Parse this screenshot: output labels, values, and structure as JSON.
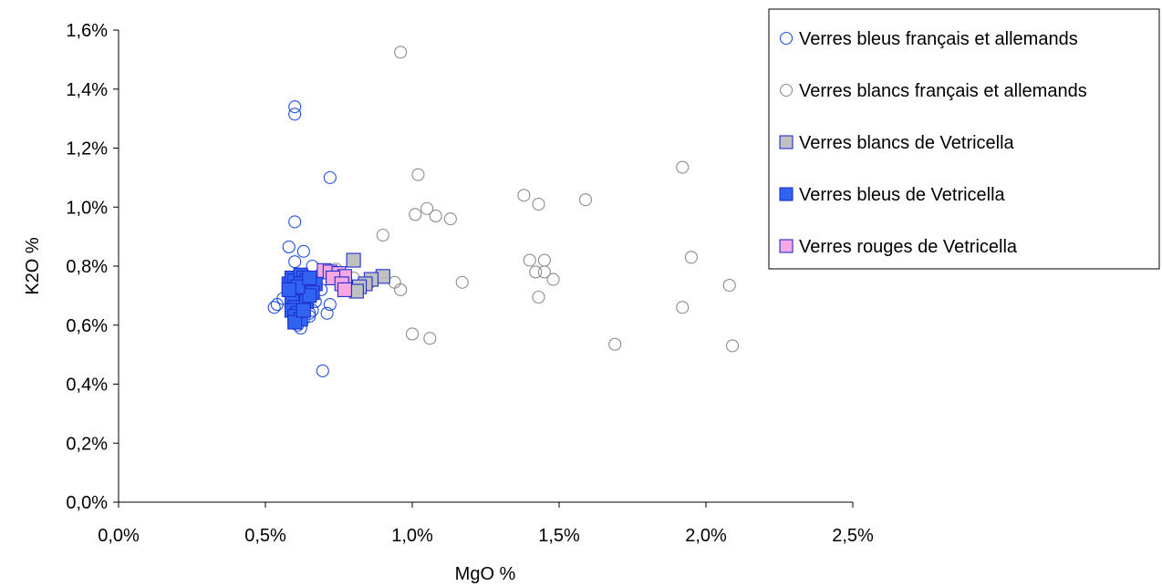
{
  "chart_data": {
    "type": "scatter",
    "xlabel": "MgO %",
    "ylabel": "K2O %",
    "xlim": [
      0,
      2.5
    ],
    "ylim": [
      0,
      1.6
    ],
    "x_ticks": [
      "0,0%",
      "0,5%",
      "1,0%",
      "1,5%",
      "2,0%",
      "2,5%"
    ],
    "y_ticks": [
      "0,0%",
      "0,2%",
      "0,4%",
      "0,6%",
      "0,8%",
      "1,0%",
      "1,2%",
      "1,4%",
      "1,6%"
    ],
    "grid": false,
    "legend_position": "top-right",
    "series": [
      {
        "name": "Verres bleus français et allemands",
        "marker": "circle",
        "stroke": "#1f4fe0",
        "fill": "none",
        "points": [
          [
            0.6,
            1.34
          ],
          [
            0.6,
            1.315
          ],
          [
            0.72,
            1.1
          ],
          [
            0.6,
            0.95
          ],
          [
            0.58,
            0.865
          ],
          [
            0.63,
            0.85
          ],
          [
            0.6,
            0.815
          ],
          [
            0.66,
            0.8
          ],
          [
            0.54,
            0.67
          ],
          [
            0.53,
            0.66
          ],
          [
            0.56,
            0.69
          ],
          [
            0.58,
            0.75
          ],
          [
            0.59,
            0.72
          ],
          [
            0.6,
            0.7
          ],
          [
            0.61,
            0.68
          ],
          [
            0.62,
            0.66
          ],
          [
            0.64,
            0.7
          ],
          [
            0.65,
            0.64
          ],
          [
            0.66,
            0.65
          ],
          [
            0.67,
            0.68
          ],
          [
            0.69,
            0.72
          ],
          [
            0.72,
            0.67
          ],
          [
            0.71,
            0.64
          ],
          [
            0.61,
            0.6
          ],
          [
            0.62,
            0.59
          ],
          [
            0.63,
            0.62
          ],
          [
            0.65,
            0.63
          ],
          [
            0.695,
            0.445
          ],
          [
            0.6,
            0.64
          ]
        ]
      },
      {
        "name": "Verres blancs français et allemands",
        "marker": "circle",
        "stroke": "#8c8c8c",
        "fill": "none",
        "points": [
          [
            0.96,
            1.525
          ],
          [
            1.02,
            1.11
          ],
          [
            1.05,
            0.995
          ],
          [
            1.01,
            0.975
          ],
          [
            1.08,
            0.97
          ],
          [
            1.13,
            0.96
          ],
          [
            0.9,
            0.905
          ],
          [
            1.38,
            1.04
          ],
          [
            1.43,
            1.01
          ],
          [
            1.59,
            1.025
          ],
          [
            1.92,
            1.135
          ],
          [
            1.95,
            0.83
          ],
          [
            1.4,
            0.82
          ],
          [
            1.45,
            0.82
          ],
          [
            1.42,
            0.78
          ],
          [
            1.45,
            0.78
          ],
          [
            1.48,
            0.755
          ],
          [
            1.43,
            0.695
          ],
          [
            1.17,
            0.745
          ],
          [
            0.94,
            0.745
          ],
          [
            0.96,
            0.72
          ],
          [
            1.0,
            0.57
          ],
          [
            1.06,
            0.555
          ],
          [
            1.69,
            0.535
          ],
          [
            1.92,
            0.66
          ],
          [
            2.08,
            0.735
          ],
          [
            2.09,
            0.53
          ],
          [
            0.74,
            0.79
          ],
          [
            0.8,
            0.76
          ],
          [
            0.82,
            0.73
          ],
          [
            0.85,
            0.74
          ]
        ]
      },
      {
        "name": "Verres blancs de Vetricella",
        "marker": "square",
        "stroke": "#1f2fd0",
        "fill": "#c0c0c0",
        "points": [
          [
            0.8,
            0.82
          ],
          [
            0.9,
            0.765
          ],
          [
            0.86,
            0.755
          ],
          [
            0.84,
            0.74
          ],
          [
            0.82,
            0.73
          ],
          [
            0.81,
            0.715
          ]
        ]
      },
      {
        "name": "Verres bleus de Vetricella",
        "marker": "square",
        "stroke": "#1f2fd0",
        "fill": "#2f63f0",
        "points": [
          [
            0.58,
            0.74
          ],
          [
            0.59,
            0.76
          ],
          [
            0.6,
            0.75
          ],
          [
            0.61,
            0.73
          ],
          [
            0.62,
            0.77
          ],
          [
            0.63,
            0.76
          ],
          [
            0.64,
            0.75
          ],
          [
            0.62,
            0.74
          ],
          [
            0.6,
            0.72
          ],
          [
            0.61,
            0.7
          ],
          [
            0.62,
            0.69
          ],
          [
            0.63,
            0.71
          ],
          [
            0.64,
            0.73
          ],
          [
            0.66,
            0.72
          ],
          [
            0.67,
            0.74
          ],
          [
            0.66,
            0.71
          ],
          [
            0.59,
            0.68
          ],
          [
            0.6,
            0.66
          ],
          [
            0.59,
            0.65
          ],
          [
            0.61,
            0.64
          ],
          [
            0.6,
            0.63
          ],
          [
            0.62,
            0.62
          ],
          [
            0.6,
            0.61
          ],
          [
            0.64,
            0.68
          ],
          [
            0.65,
            0.7
          ],
          [
            0.61,
            0.73
          ],
          [
            0.58,
            0.72
          ],
          [
            0.63,
            0.65
          ],
          [
            0.65,
            0.76
          ]
        ]
      },
      {
        "name": "Verres rouges de Vetricella",
        "marker": "square",
        "stroke": "#1f2fd0",
        "fill": "#f7a8e3",
        "points": [
          [
            0.7,
            0.785
          ],
          [
            0.72,
            0.78
          ],
          [
            0.75,
            0.775
          ],
          [
            0.77,
            0.765
          ],
          [
            0.73,
            0.76
          ],
          [
            0.76,
            0.74
          ],
          [
            0.77,
            0.72
          ]
        ]
      }
    ]
  }
}
